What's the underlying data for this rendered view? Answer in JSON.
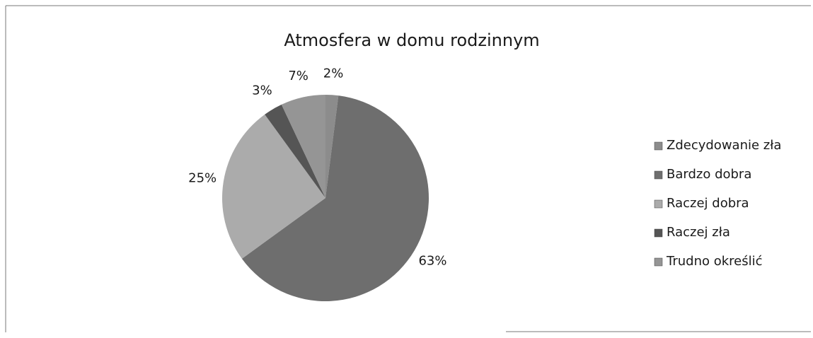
{
  "chart_data": {
    "type": "pie",
    "title": "Atmosfera w domu rodzinnym",
    "categories": [
      "Zdecydowanie zła",
      "Bardzo dobra",
      "Raczej dobra",
      "Raczej zła",
      "Trudno określić"
    ],
    "values": [
      2,
      63,
      25,
      3,
      7
    ],
    "value_labels": [
      "2%",
      "63%",
      "25%",
      "3%",
      "7%"
    ],
    "colors": [
      "#8c8c8c",
      "#6e6e6e",
      "#ababab",
      "#555555",
      "#959595"
    ],
    "legend": "right"
  }
}
